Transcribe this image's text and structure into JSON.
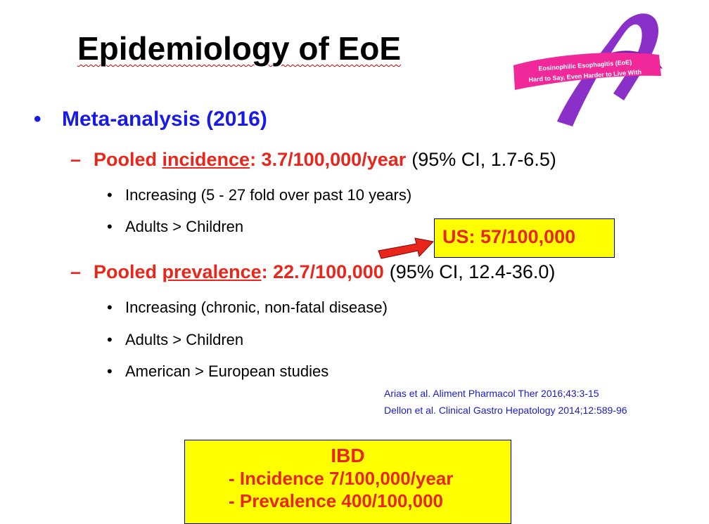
{
  "title": "Epidemiology of EoE",
  "ribbon": {
    "line1": "Eosinophilic Esophagitis  (EoE)",
    "line2": "Hard to Say, Even Harder to Live With"
  },
  "bullets": [
    {
      "text": "Meta-analysis (2016)",
      "items": [
        {
          "label_parts": [
            "Pooled ",
            "incidence",
            ": 3.7/100,000/year"
          ],
          "note": "(95% CI, 1.7-6.5)",
          "subitems": [
            "Increasing (5 - 27 fold over past 10 years)",
            "Adults > Children"
          ]
        },
        {
          "label_parts": [
            "Pooled ",
            "prevalence",
            ": 22.7/100,000"
          ],
          "note": "(95% CI, 12.4-36.0)",
          "subitems": [
            "Increasing (chronic, non-fatal disease)",
            "Adults > Children",
            "American > European studies"
          ]
        }
      ]
    }
  ],
  "callout": "US: 57/100,000",
  "citations": [
    "Arias et al. Aliment Pharmacol Ther 2016;43:3-15",
    "Dellon et al. Clinical Gastro Hepatology 2014;12:589-96"
  ],
  "ibd": {
    "title": "IBD",
    "lines": [
      "- Incidence 7/100,000/year",
      "- Prevalence 400/100,000"
    ]
  }
}
